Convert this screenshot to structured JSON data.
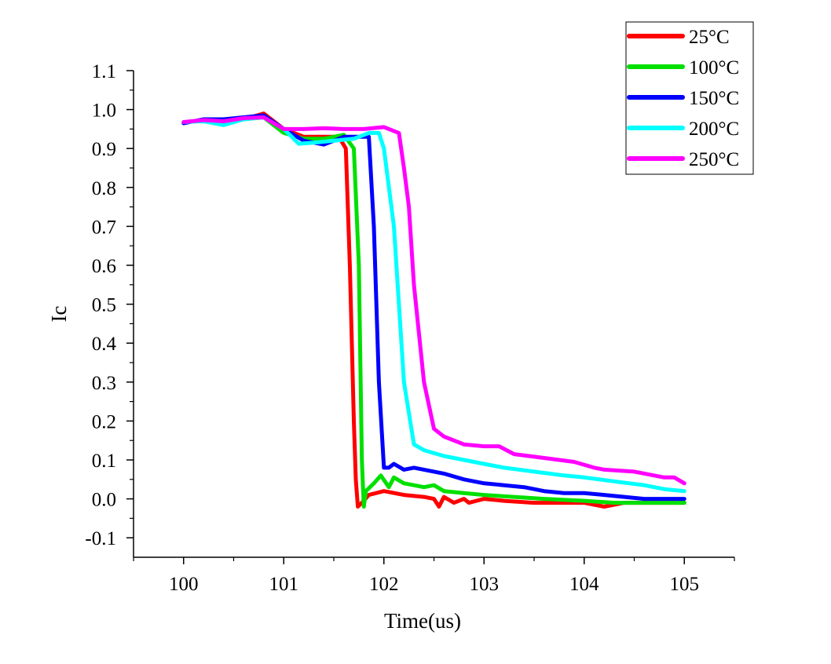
{
  "chart_data": {
    "type": "line",
    "xlabel": "Time(us)",
    "ylabel": "Ic",
    "xlim": [
      99.5,
      105.5
    ],
    "ylim": [
      -0.15,
      1.1
    ],
    "xticks": [
      100,
      101,
      102,
      103,
      104,
      105
    ],
    "xtick_labels": [
      "100",
      "101",
      "102",
      "103",
      "104",
      "105"
    ],
    "yticks": [
      -0.1,
      0.0,
      0.1,
      0.2,
      0.3,
      0.4,
      0.5,
      0.6,
      0.7,
      0.8,
      0.9,
      1.0,
      1.1
    ],
    "ytick_labels": [
      "-0.1",
      "0.0",
      "0.1",
      "0.2",
      "0.3",
      "0.4",
      "0.5",
      "0.6",
      "0.7",
      "0.8",
      "0.9",
      "1.0",
      "1.1"
    ],
    "grid": false,
    "legend_position": "top-right",
    "series": [
      {
        "name": "25°C",
        "color": "#ff0000",
        "x": [
          100.0,
          100.2,
          100.4,
          100.6,
          100.8,
          101.0,
          101.2,
          101.4,
          101.55,
          101.62,
          101.66,
          101.7,
          101.72,
          101.74,
          101.78,
          101.85,
          102.0,
          102.2,
          102.4,
          102.5,
          102.55,
          102.6,
          102.7,
          102.8,
          102.85,
          103.0,
          103.2,
          103.5,
          103.8,
          104.0,
          104.2,
          104.4,
          104.6,
          104.8,
          105.0
        ],
        "y": [
          0.967,
          0.972,
          0.97,
          0.975,
          0.99,
          0.95,
          0.93,
          0.93,
          0.93,
          0.9,
          0.6,
          0.2,
          0.05,
          -0.02,
          -0.01,
          0.01,
          0.02,
          0.01,
          0.005,
          0.0,
          -0.02,
          0.005,
          -0.01,
          0.0,
          -0.01,
          0.0,
          -0.005,
          -0.01,
          -0.01,
          -0.01,
          -0.02,
          -0.01,
          -0.01,
          -0.01,
          -0.01
        ]
      },
      {
        "name": "100°C",
        "color": "#00e000",
        "x": [
          100.0,
          100.2,
          100.4,
          100.6,
          100.8,
          101.0,
          101.2,
          101.4,
          101.6,
          101.7,
          101.75,
          101.78,
          101.8,
          101.82,
          101.9,
          101.97,
          102.05,
          102.1,
          102.2,
          102.3,
          102.4,
          102.5,
          102.6,
          102.8,
          103.0,
          103.3,
          103.6,
          104.0,
          104.3,
          104.6,
          104.8,
          105.0
        ],
        "y": [
          0.967,
          0.972,
          0.97,
          0.975,
          0.98,
          0.94,
          0.925,
          0.925,
          0.935,
          0.9,
          0.6,
          0.1,
          -0.02,
          0.02,
          0.04,
          0.06,
          0.03,
          0.055,
          0.04,
          0.035,
          0.03,
          0.035,
          0.02,
          0.015,
          0.01,
          0.005,
          0.0,
          -0.005,
          -0.01,
          -0.01,
          -0.01,
          -0.01
        ]
      },
      {
        "name": "150°C",
        "color": "#0000ff",
        "x": [
          100.0,
          100.2,
          100.4,
          100.6,
          100.8,
          101.0,
          101.2,
          101.4,
          101.6,
          101.75,
          101.85,
          101.9,
          101.95,
          102.0,
          102.05,
          102.1,
          102.2,
          102.3,
          102.4,
          102.6,
          102.8,
          103.0,
          103.2,
          103.4,
          103.6,
          103.8,
          104.0,
          104.2,
          104.4,
          104.6,
          104.8,
          105.0
        ],
        "y": [
          0.965,
          0.975,
          0.975,
          0.98,
          0.985,
          0.95,
          0.92,
          0.91,
          0.93,
          0.93,
          0.93,
          0.7,
          0.3,
          0.08,
          0.08,
          0.09,
          0.075,
          0.08,
          0.075,
          0.065,
          0.05,
          0.04,
          0.035,
          0.03,
          0.02,
          0.015,
          0.015,
          0.01,
          0.005,
          0.0,
          0.0,
          0.0
        ]
      },
      {
        "name": "200°C",
        "color": "#00ffff",
        "x": [
          100.0,
          100.2,
          100.4,
          100.6,
          100.8,
          101.0,
          101.15,
          101.3,
          101.5,
          101.7,
          101.85,
          101.95,
          102.0,
          102.1,
          102.15,
          102.2,
          102.3,
          102.4,
          102.6,
          102.8,
          103.0,
          103.2,
          103.5,
          103.8,
          104.0,
          104.3,
          104.6,
          104.8,
          105.0
        ],
        "y": [
          0.968,
          0.97,
          0.96,
          0.975,
          0.98,
          0.95,
          0.912,
          0.915,
          0.92,
          0.925,
          0.94,
          0.94,
          0.9,
          0.7,
          0.5,
          0.3,
          0.14,
          0.125,
          0.11,
          0.1,
          0.09,
          0.08,
          0.07,
          0.06,
          0.055,
          0.045,
          0.035,
          0.025,
          0.02
        ]
      },
      {
        "name": "250°C",
        "color": "#ff00ff",
        "x": [
          100.0,
          100.2,
          100.4,
          100.6,
          100.8,
          101.0,
          101.2,
          101.4,
          101.6,
          101.8,
          102.0,
          102.15,
          102.2,
          102.25,
          102.3,
          102.4,
          102.5,
          102.6,
          102.8,
          103.0,
          103.15,
          103.3,
          103.6,
          103.9,
          104.1,
          104.2,
          104.5,
          104.8,
          104.9,
          105.0
        ],
        "y": [
          0.968,
          0.973,
          0.97,
          0.978,
          0.98,
          0.95,
          0.95,
          0.952,
          0.95,
          0.95,
          0.955,
          0.94,
          0.85,
          0.75,
          0.55,
          0.3,
          0.18,
          0.16,
          0.14,
          0.135,
          0.135,
          0.115,
          0.105,
          0.095,
          0.08,
          0.075,
          0.07,
          0.055,
          0.055,
          0.04
        ]
      }
    ]
  }
}
